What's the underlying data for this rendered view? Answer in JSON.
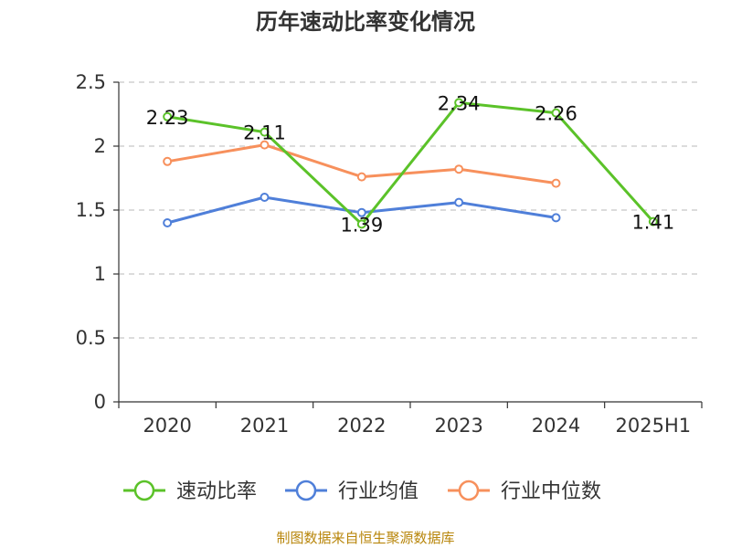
{
  "chart_data": {
    "type": "line",
    "title": "历年速动比率变化情况",
    "categories": [
      "2020",
      "2021",
      "2022",
      "2023",
      "2024",
      "2025H1"
    ],
    "ylim": [
      0,
      2.5
    ],
    "yticks": [
      "0",
      "0.5",
      "1",
      "1.5",
      "2",
      "2.5"
    ],
    "grid": true,
    "legend_position": "bottom",
    "series": [
      {
        "name": "速动比率",
        "color": "#5bc229",
        "values": [
          2.23,
          2.11,
          1.39,
          2.34,
          2.26,
          1.41
        ],
        "labels": [
          "2.23",
          "2.11",
          "1.39",
          "2.34",
          "2.26",
          "1.41"
        ]
      },
      {
        "name": "行业均值",
        "color": "#4f7fd9",
        "values": [
          1.4,
          1.6,
          1.48,
          1.56,
          1.44,
          null
        ]
      },
      {
        "name": "行业中位数",
        "color": "#f7905c",
        "values": [
          1.88,
          2.01,
          1.76,
          1.82,
          1.71,
          null
        ]
      }
    ]
  },
  "source": "制图数据来自恒生聚源数据库"
}
